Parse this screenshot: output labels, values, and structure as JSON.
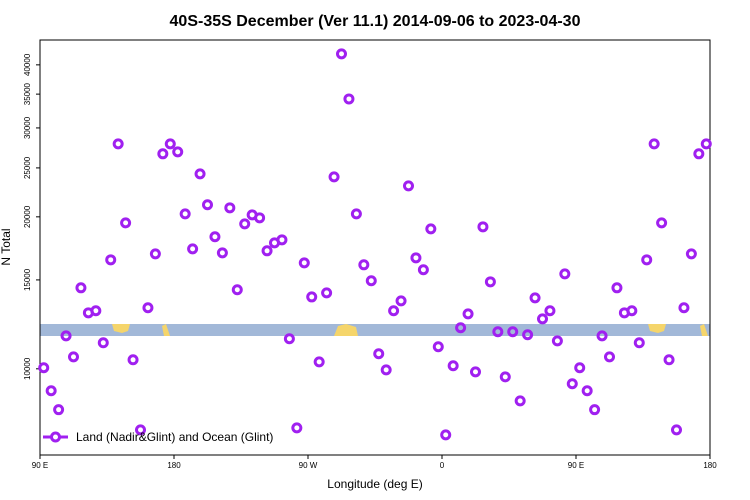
{
  "chart_data": {
    "type": "scatter",
    "title": "40S-35S December (Ver 11.1)   2014-09-06 to 2023-04-30",
    "xlabel": "Longitude (deg E)",
    "ylabel": "N Total",
    "yscale": "log",
    "legend": "lower left",
    "xlim": [
      90,
      540
    ],
    "ylim": [
      6750,
      44800
    ],
    "xticks": [
      {
        "value": 90,
        "label": "90 E"
      },
      180,
      {
        "value": 270,
        "label": "90 W"
      },
      {
        "value": 360,
        "label": "0"
      },
      {
        "value": 450,
        "label": "90 E"
      },
      {
        "value": 540,
        "label": "180"
      }
    ],
    "yticks": [
      10000,
      15000,
      20000,
      25000,
      30000,
      35000,
      40000
    ],
    "series": [
      {
        "name": "Land (Nadir&Glint) and Ocean (Glint)",
        "color": "#a020f0",
        "x": [
          92.5,
          97.5,
          102.5,
          107.5,
          112.5,
          117.5,
          122.5,
          127.5,
          132.5,
          137.5,
          142.5,
          147.5,
          152.5,
          157.5,
          162.5,
          167.5,
          172.5,
          177.5,
          182.5,
          187.5,
          192.5,
          197.5,
          202.5,
          207.5,
          212.5,
          217.5,
          222.5,
          227.5,
          232.5,
          237.5,
          242.5,
          247.5,
          252.5,
          257.5,
          262.5,
          267.5,
          272.5,
          277.5,
          282.5,
          287.5,
          292.5,
          297.5,
          302.5,
          307.5,
          312.5,
          317.5,
          322.5,
          327.5,
          332.5,
          337.5,
          342.5,
          347.5,
          352.5,
          357.5,
          362.5,
          367.5,
          372.5,
          377.5,
          382.5,
          387.5,
          392.5,
          397.5,
          402.5,
          407.5,
          412.5,
          417.5,
          422.5,
          427.5,
          432.5,
          437.5,
          442.5,
          447.5,
          452.5,
          457.5,
          462.5,
          467.5,
          472.5,
          477.5,
          482.5,
          487.5,
          492.5,
          497.5,
          502.5,
          507.5,
          512.5,
          517.5,
          522.5,
          527.5,
          532.5,
          537.5
        ],
        "values": [
          10050,
          9050,
          8300,
          11620,
          10560,
          14470,
          12910,
          13030,
          11260,
          16440,
          27900,
          19460,
          10420,
          7570,
          13210,
          16890,
          26660,
          27900,
          26900,
          20270,
          17280,
          24330,
          21130,
          18260,
          16970,
          20840,
          14340,
          19370,
          20180,
          19910,
          17130,
          17760,
          18010,
          11470,
          7640,
          16210,
          13880,
          10320,
          14140,
          24000,
          42050,
          34240,
          20270,
          16070,
          14940,
          10710,
          9950,
          13030,
          13630,
          23030,
          16590,
          15710,
          18930,
          11060,
          7400,
          10140,
          12060,
          12850,
          9860,
          19110,
          14870,
          11840,
          9640,
          11840,
          8640,
          11680,
          13820,
          12560,
          13030,
          11360,
          15420,
          9340,
          10050,
          9050,
          8300,
          11620,
          10560,
          14470,
          12910,
          13030,
          11260,
          16440,
          27900,
          19460,
          10420,
          7570,
          13210,
          16890,
          26660,
          27900
        ]
      }
    ]
  }
}
